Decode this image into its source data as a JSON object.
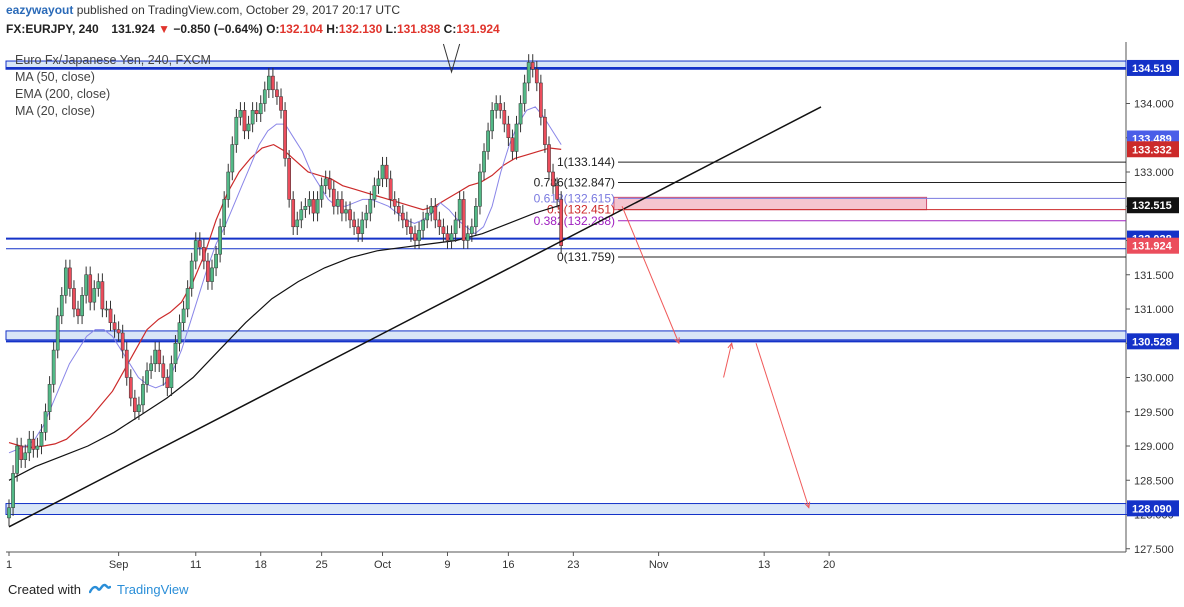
{
  "header": {
    "author": "eazywayout",
    "published_text": "published on TradingView.com, October 29, 2017 20:17 UTC",
    "symbol": "FX:EURJPY, 240",
    "last": "131.924",
    "down_arrow": "▼",
    "change": "−0.850 (−0.64%)",
    "o_label": "O:",
    "o_value": "132.104",
    "h_label": "H:",
    "h_value": "132.130",
    "l_label": "L:",
    "l_value": "131.838",
    "c_label": "C:",
    "c_value": "131.924"
  },
  "legend": {
    "instrument": "Euro Fx/Japanese Yen, 240, FXCM",
    "ma50": "MA (50, close)",
    "ema200": "EMA (200, close)",
    "ma20": "MA (20, close)"
  },
  "footer": {
    "created_with": "Created with",
    "brand": "TradingView"
  },
  "colors": {
    "bull": "#53b987",
    "bear": "#eb4d5c",
    "ma50": "#cc2a2a",
    "ema200": "#111111",
    "ma20": "#8a86e8",
    "hline": "#1432c8",
    "arrow": "#f05a5a"
  },
  "chart_data": {
    "type": "candlestick",
    "ylim": [
      127.5,
      134.9
    ],
    "y_ticks": [
      "127.500",
      "128.000",
      "128.500",
      "129.000",
      "129.500",
      "130.000",
      "130.500",
      "131.000",
      "131.500",
      "132.000",
      "132.500",
      "133.000",
      "133.500",
      "134.000"
    ],
    "x_ticks": [
      {
        "label": "1",
        "bar": 0
      },
      {
        "label": "Sep",
        "bar": 27
      },
      {
        "label": "11",
        "bar": 46
      },
      {
        "label": "18",
        "bar": 62
      },
      {
        "label": "25",
        "bar": 77
      },
      {
        "label": "Oct",
        "bar": 92
      },
      {
        "label": "9",
        "bar": 108
      },
      {
        "label": "16",
        "bar": 123
      },
      {
        "label": "23",
        "bar": 139
      },
      {
        "label": "Nov",
        "bar": 160
      },
      {
        "label": "13",
        "bar": 186
      },
      {
        "label": "20",
        "bar": 202
      }
    ],
    "price_labels": [
      {
        "text": "134.519",
        "value": 134.519,
        "bg": "#1432c8",
        "fg": "#ffffff"
      },
      {
        "text": "133.489",
        "value": 133.489,
        "bg": "#4a5ee8",
        "fg": "#ffffff"
      },
      {
        "text": "133.332",
        "value": 133.332,
        "bg": "#cc2a2a",
        "fg": "#ffffff"
      },
      {
        "text": "132.515",
        "value": 132.515,
        "bg": "#111111",
        "fg": "#ffffff"
      },
      {
        "text": "132.028",
        "value": 132.028,
        "bg": "#1432c8",
        "fg": "#ffffff"
      },
      {
        "text": "131.924",
        "value": 131.924,
        "bg": "#eb4d5c",
        "fg": "#ffffff"
      },
      {
        "text": "130.528",
        "value": 130.528,
        "bg": "#1432c8",
        "fg": "#ffffff"
      },
      {
        "text": "128.090",
        "value": 128.09,
        "bg": "#1432c8",
        "fg": "#ffffff"
      }
    ],
    "fib_levels": [
      {
        "text": "1(133.144)",
        "value": 133.144,
        "color": "#222222"
      },
      {
        "text": "0.786(132.847)",
        "value": 132.847,
        "color": "#222222"
      },
      {
        "text": "0.618(132.615)",
        "value": 132.615,
        "color": "#7a7ae0"
      },
      {
        "text": "0.5(132.451)",
        "value": 132.451,
        "color": "#cc2a2a"
      },
      {
        "text": "0.382(132.288)",
        "value": 132.288,
        "color": "#a020c0"
      },
      {
        "text": "0(131.759)",
        "value": 131.759,
        "color": "#222222"
      }
    ],
    "horizontal_lines": [
      134.519,
      132.028,
      131.88,
      130.528
    ],
    "zones": [
      {
        "from": 134.5,
        "to": 134.62
      },
      {
        "from": 130.55,
        "to": 130.68
      },
      {
        "from": 128.0,
        "to": 128.16
      }
    ],
    "pink_zone": {
      "from": 132.45,
      "to": 132.63,
      "bar_from": 149,
      "bar_to": 226
    },
    "series": [
      {
        "name": "Euro Fx/Japanese Yen, 240, FXCM",
        "values": [
          128.1,
          128.6,
          129.0,
          128.8,
          128.9,
          129.1,
          128.95,
          129.0,
          129.2,
          129.5,
          129.9,
          130.4,
          130.9,
          131.2,
          131.6,
          131.3,
          131.0,
          130.9,
          131.2,
          131.5,
          131.1,
          131.3,
          131.4,
          131.0,
          131.0,
          130.8,
          130.7,
          130.65,
          130.4,
          130.0,
          129.7,
          129.5,
          129.6,
          129.9,
          130.1,
          130.2,
          130.4,
          130.2,
          130.0,
          129.85,
          130.2,
          130.5,
          130.8,
          131.0,
          131.3,
          131.7,
          132.0,
          131.9,
          131.7,
          131.4,
          131.6,
          131.8,
          132.2,
          132.6,
          133.0,
          133.4,
          133.8,
          133.9,
          133.6,
          133.7,
          133.9,
          133.85,
          134.0,
          134.2,
          134.4,
          134.2,
          134.1,
          133.9,
          133.2,
          132.6,
          132.2,
          132.3,
          132.45,
          132.5,
          132.6,
          132.4,
          132.6,
          132.8,
          132.9,
          132.75,
          132.5,
          132.6,
          132.4,
          132.45,
          132.3,
          132.2,
          132.1,
          132.3,
          132.4,
          132.6,
          132.8,
          132.9,
          133.1,
          132.9,
          132.6,
          132.5,
          132.4,
          132.3,
          132.2,
          132.1,
          132.0,
          132.15,
          132.3,
          132.4,
          132.5,
          132.3,
          132.2,
          132.1,
          132.0,
          132.1,
          132.3,
          132.6,
          132.0,
          132.1,
          132.2,
          132.5,
          133.0,
          133.3,
          133.6,
          133.9,
          134.0,
          133.9,
          133.7,
          133.5,
          133.3,
          133.7,
          134.0,
          134.3,
          134.6,
          134.5,
          134.3,
          133.8,
          133.4,
          133.0,
          132.8,
          132.6,
          131.924
        ]
      },
      {
        "name": "MA (20, close)",
        "values": [
          128.9,
          128.95,
          129.0,
          129.1,
          129.3,
          129.6,
          129.9,
          130.2,
          130.4,
          130.6,
          130.7,
          130.7,
          130.6,
          130.4,
          130.2,
          130.0,
          129.9,
          129.85,
          129.9,
          130.1,
          130.4,
          130.8,
          131.2,
          131.6,
          131.95,
          132.2,
          132.5,
          132.8,
          133.1,
          133.4,
          133.6,
          133.7,
          133.7,
          133.5,
          133.3,
          133.0,
          132.8,
          132.6,
          132.5,
          132.5,
          132.55,
          132.6,
          132.6,
          132.55,
          132.5,
          132.4,
          132.3,
          132.25,
          132.3,
          132.4,
          132.55,
          132.45,
          132.3,
          132.2,
          132.1,
          132.2,
          132.5,
          133.0,
          133.4,
          133.7,
          133.9,
          133.95,
          133.8,
          133.6,
          133.4
        ]
      },
      {
        "name": "MA (50, close)",
        "values": [
          129.05,
          129.0,
          128.98,
          129.0,
          129.03,
          129.1,
          129.25,
          129.4,
          129.6,
          129.8,
          130.1,
          130.4,
          130.7,
          130.85,
          130.95,
          131.1,
          131.4,
          131.8,
          132.3,
          132.7,
          133.0,
          133.2,
          133.35,
          133.4,
          133.3,
          133.15,
          133.0,
          132.95,
          132.9,
          132.8,
          132.75,
          132.7,
          132.65,
          132.6,
          132.55,
          132.5,
          132.45,
          132.5,
          132.6,
          132.7,
          132.8,
          132.85,
          132.95,
          133.1,
          133.2,
          133.25,
          133.3,
          133.35,
          133.33
        ]
      },
      {
        "name": "EMA (200, close)",
        "values": [
          128.5,
          128.7,
          128.85,
          129.0,
          129.2,
          129.45,
          129.7,
          130.0,
          130.4,
          130.8,
          131.15,
          131.4,
          131.6,
          131.75,
          131.85,
          131.9,
          131.95,
          132.0,
          132.1,
          132.25,
          132.4,
          132.52
        ]
      }
    ],
    "trendlines": [
      {
        "from": {
          "bar": 0,
          "value": 127.82
        },
        "to": {
          "bar": 200,
          "value": 133.95
        }
      }
    ],
    "annotations": [
      {
        "type": "arrow",
        "from": {
          "bar": 151,
          "value": 132.5
        },
        "to": {
          "bar": 165,
          "value": 130.5
        }
      },
      {
        "type": "arrow",
        "from": {
          "bar": 176,
          "value": 130.0
        },
        "to": {
          "bar": 178,
          "value": 130.5
        }
      },
      {
        "type": "arrow",
        "from": {
          "bar": 184,
          "value": 130.5
        },
        "to": {
          "bar": 197,
          "value": 128.1
        }
      }
    ]
  }
}
